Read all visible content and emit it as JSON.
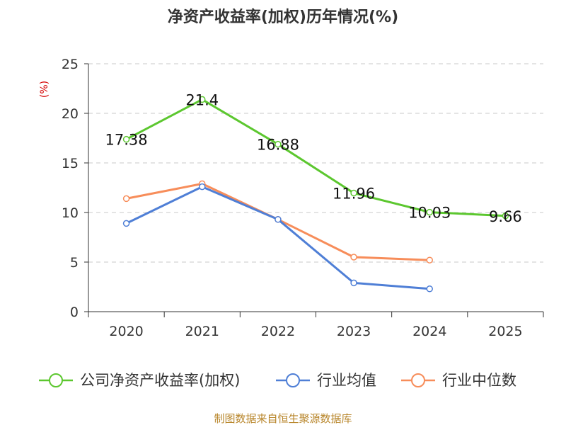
{
  "chart_data": {
    "type": "line",
    "title": "净资产收益率(加权)历年情况(%)",
    "ylabel": "(%)",
    "xlabel": "",
    "categories": [
      "2020",
      "2021",
      "2022",
      "2023",
      "2024",
      "2025"
    ],
    "ylim": [
      0,
      25
    ],
    "yticks": [
      0,
      5,
      10,
      15,
      20,
      25
    ],
    "grid": true,
    "legend_position": "bottom",
    "series": [
      {
        "name": "公司净资产收益率(加权)",
        "color": "#5cc72f",
        "values": [
          17.38,
          21.4,
          16.88,
          11.96,
          10.03,
          9.66
        ],
        "labels": [
          "17.38",
          "21.4",
          "16.88",
          "11.96",
          "10.03",
          "9.66"
        ]
      },
      {
        "name": "行业均值",
        "color": "#4f7fd6",
        "values": [
          8.9,
          12.6,
          9.3,
          2.9,
          2.3,
          null
        ]
      },
      {
        "name": "行业中位数",
        "color": "#f78d5a",
        "values": [
          11.4,
          12.9,
          9.3,
          5.5,
          5.2,
          null
        ]
      }
    ],
    "source": "制图数据来自恒生聚源数据库"
  }
}
